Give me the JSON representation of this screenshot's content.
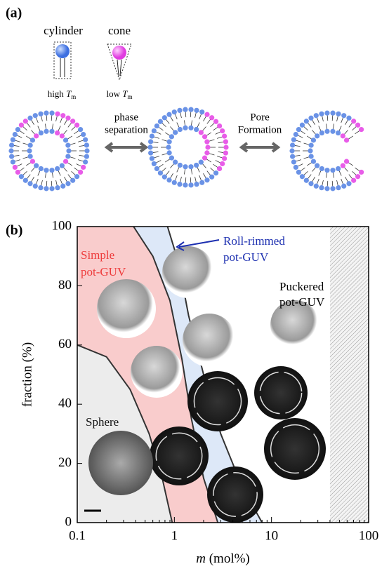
{
  "panel_a": {
    "label": "(a)",
    "molecules": [
      {
        "name": "cylinder",
        "prefix": "high ",
        "symbol": "T",
        "subscript": "m"
      },
      {
        "name": "cone",
        "prefix": "low ",
        "symbol": "T",
        "subscript": "m"
      }
    ],
    "transitions": [
      {
        "lines": [
          "phase",
          "separation"
        ]
      },
      {
        "lines": [
          "Pore",
          "Formation"
        ]
      }
    ]
  },
  "chart_data": {
    "type": "phase-diagram",
    "label": "(b)",
    "x_label": {
      "symbol": "m",
      "unit": " (mol%)"
    },
    "y_label": "fraction (%)",
    "xscale": "log",
    "xlim": [
      0.1,
      100
    ],
    "xticks": [
      0.1,
      1,
      10,
      100
    ],
    "ylim": [
      0,
      100
    ],
    "yticks": [
      0,
      20,
      40,
      60,
      80,
      100
    ],
    "regions": [
      {
        "lines": [
          "Roll-rimmed",
          "pot-GUV"
        ],
        "color": "#dde8f8",
        "text_color": "#1c2fb0",
        "x": [
          0.85,
          1.1,
          1.4,
          2,
          3,
          5,
          8
        ],
        "values": [
          100,
          88,
          70,
          50,
          30,
          12,
          0
        ]
      },
      {
        "lines": [
          "Simple",
          "pot-GUV"
        ],
        "color": "#f9cccc",
        "text_color": "#ee3b3b",
        "x": [
          0.38,
          0.6,
          0.9,
          1.2,
          1.5,
          2,
          2.8
        ],
        "values": [
          100,
          90,
          75,
          55,
          35,
          15,
          0
        ]
      },
      {
        "lines": [
          "Sphere"
        ],
        "color": "#ececec",
        "text_color": "#111111",
        "x": [
          0.1,
          0.2,
          0.35,
          0.55,
          0.75,
          0.95
        ],
        "values": [
          60,
          56,
          45,
          30,
          15,
          0
        ]
      }
    ],
    "outer_region": {
      "lines": [
        "Puckered",
        "pot-GUV"
      ]
    },
    "excluded_x": [
      40,
      100
    ]
  }
}
